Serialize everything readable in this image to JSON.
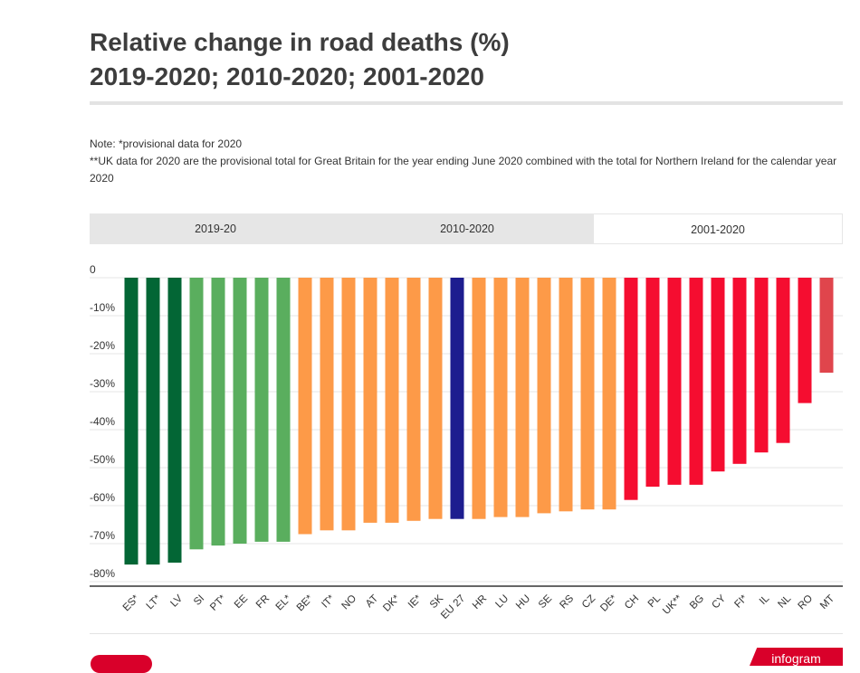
{
  "header": {
    "title_line1": "Relative change in road deaths (%)",
    "title_line2": "2019-2020; 2010-2020; 2001-2020"
  },
  "notes": {
    "line1": "Note: *provisional data for 2020",
    "line2": "**UK data for 2020 are the provisional total for Great Britain for the year ending June 2020 combined with the total for Northern Ireland for the calendar year 2020"
  },
  "tabs": [
    {
      "label": "2019-20",
      "active": false
    },
    {
      "label": "2010-2020",
      "active": false
    },
    {
      "label": "2001-2020",
      "active": true
    }
  ],
  "footer": {
    "brand": "infogram"
  },
  "chart_data": {
    "type": "bar",
    "categories": [
      "ES*",
      "LT*",
      "LV",
      "SI",
      "PT*",
      "EE",
      "FR",
      "EL*",
      "BE*",
      "IT*",
      "NO",
      "AT",
      "DK*",
      "IE*",
      "SK",
      "EU 27",
      "HR",
      "LU",
      "HU",
      "SE",
      "RS",
      "CZ",
      "DE*",
      "CH",
      "PL",
      "UK**",
      "BG",
      "CY",
      "FI*",
      "IL",
      "NL",
      "RO",
      "MT"
    ],
    "values": [
      -75.5,
      -75.5,
      -75,
      -71.5,
      -70.5,
      -70,
      -69.5,
      -69.5,
      -67.5,
      -66.5,
      -66.5,
      -64.5,
      -64.5,
      -64,
      -63.5,
      -63.5,
      -63.5,
      -63,
      -63,
      -62,
      -61.5,
      -61,
      -61,
      -58.5,
      -55,
      -54.5,
      -54.5,
      -51,
      -49,
      -46,
      -43.5,
      -33,
      -25
    ],
    "colors": [
      "#036635",
      "#036635",
      "#036635",
      "#5aae5e",
      "#5aae5e",
      "#5aae5e",
      "#5aae5e",
      "#5aae5e",
      "#fd9a48",
      "#fd9a48",
      "#fd9a48",
      "#fd9a48",
      "#fd9a48",
      "#fd9a48",
      "#fd9a48",
      "#1d1d8f",
      "#fd9a48",
      "#fd9a48",
      "#fd9a48",
      "#fd9a48",
      "#fd9a48",
      "#fd9a48",
      "#fd9a48",
      "#f50d30",
      "#f50d30",
      "#f50d30",
      "#f50d30",
      "#f50d30",
      "#f50d30",
      "#f50d30",
      "#f50d30",
      "#f50d30",
      "#e0454c"
    ],
    "y_ticks": [
      "0",
      "-10%",
      "-20%",
      "-30%",
      "-40%",
      "-50%",
      "-60%",
      "-70%",
      "-80%"
    ],
    "ylim": [
      -80,
      0
    ],
    "grid": true
  }
}
